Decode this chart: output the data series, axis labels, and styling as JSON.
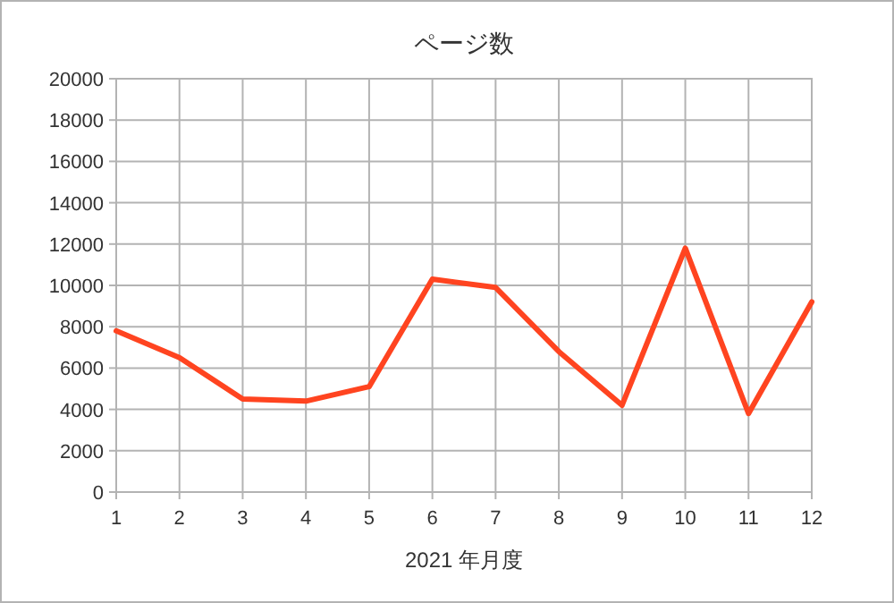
{
  "chart_data": {
    "type": "line",
    "title": "ページ数",
    "xlabel": "2021 年月度",
    "x": [
      1,
      2,
      3,
      4,
      5,
      6,
      7,
      8,
      9,
      10,
      11,
      12
    ],
    "series": [
      {
        "color": "#ff4420",
        "values": [
          7800,
          6500,
          4500,
          4400,
          5100,
          10300,
          9900,
          6800,
          4200,
          11800,
          3800,
          9200
        ]
      }
    ],
    "xlim": [
      1,
      12
    ],
    "xticks": [
      1,
      2,
      3,
      4,
      5,
      6,
      7,
      8,
      9,
      10,
      11,
      12
    ],
    "ylim": [
      0,
      20000
    ],
    "yticks": [
      0,
      2000,
      4000,
      6000,
      8000,
      10000,
      12000,
      14000,
      16000,
      18000,
      20000
    ],
    "grid": true,
    "marker": "none",
    "line_style": "solid"
  }
}
